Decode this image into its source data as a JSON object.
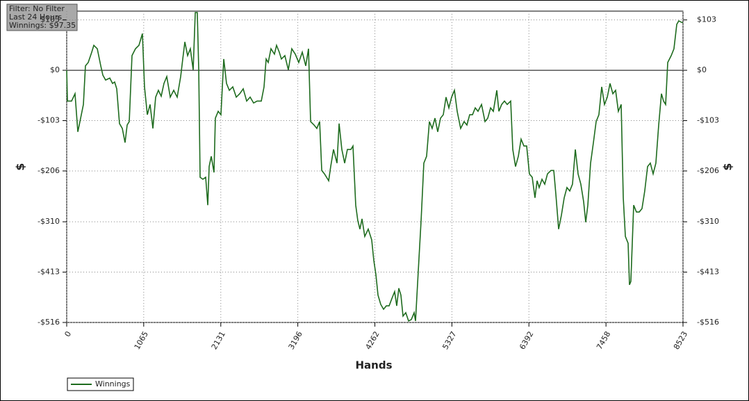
{
  "chart_data": {
    "type": "line",
    "info_box": [
      "Filter: No Filter",
      "Last 24 Hours",
      "Winnings: $97.35"
    ],
    "xlabel": "Hands",
    "ylabel": "$",
    "y2label": "$",
    "xlim": [
      0,
      8523
    ],
    "xticks": [
      0,
      1065,
      2131,
      3196,
      4262,
      5327,
      6392,
      7458,
      8523
    ],
    "ylim": [
      -516,
      121
    ],
    "yticks": [
      {
        "value": 103,
        "label": "$103"
      },
      {
        "value": 0,
        "label": "$0"
      },
      {
        "value": -103,
        "label": "-$103"
      },
      {
        "value": -206,
        "label": "-$206"
      },
      {
        "value": -310,
        "label": "-$310"
      },
      {
        "value": -413,
        "label": "-$413"
      },
      {
        "value": -516,
        "label": "-$516"
      }
    ],
    "y2lim": [
      -516,
      121
    ],
    "y2ticks": [
      {
        "value": 103,
        "label": "$103"
      },
      {
        "value": 0,
        "label": "$0"
      },
      {
        "value": -103,
        "label": "-$103"
      },
      {
        "value": -206,
        "label": "-$206"
      },
      {
        "value": -310,
        "label": "-$310"
      },
      {
        "value": -413,
        "label": "-$413"
      },
      {
        "value": -516,
        "label": "-$516"
      }
    ],
    "grid": true,
    "legend": "bottom-left",
    "x": [
      0,
      10,
      67,
      115,
      154,
      183,
      231,
      259,
      298,
      346,
      375,
      423,
      471,
      500,
      538,
      596,
      634,
      663,
      692,
      730,
      769,
      807,
      836,
      865,
      903,
      951,
      999,
      1047,
      1076,
      1115,
      1153,
      1192,
      1230,
      1268,
      1307,
      1345,
      1384,
      1432,
      1480,
      1528,
      1576,
      1605,
      1634,
      1672,
      1710,
      1749,
      1778,
      1806,
      1826,
      1845,
      1883,
      1922,
      1951,
      1970,
      1999,
      2037,
      2056,
      2095,
      2133,
      2172,
      2210,
      2249,
      2297,
      2345,
      2393,
      2441,
      2489,
      2537,
      2585,
      2633,
      2691,
      2729,
      2758,
      2787,
      2825,
      2873,
      2902,
      2940,
      2969,
      3017,
      3065,
      3113,
      3161,
      3209,
      3258,
      3306,
      3344,
      3373,
      3421,
      3459,
      3498,
      3527,
      3565,
      3623,
      3651,
      3690,
      3738,
      3767,
      3805,
      3844,
      3882,
      3930,
      3959,
      3997,
      4026,
      4055,
      4084,
      4122,
      4170,
      4218,
      4247,
      4276,
      4305,
      4343,
      4382,
      4420,
      4459,
      4497,
      4535,
      4564,
      4593,
      4622,
      4651,
      4689,
      4728,
      4766,
      4805,
      4824,
      4862,
      4901,
      4939,
      4977,
      5016,
      5054,
      5093,
      5131,
      5170,
      5208,
      5246,
      5285,
      5323,
      5362,
      5400,
      5448,
      5496,
      5535,
      5573,
      5612,
      5650,
      5688,
      5737,
      5785,
      5823,
      5862,
      5900,
      5948,
      5977,
      6015,
      6054,
      6092,
      6140,
      6169,
      6207,
      6246,
      6284,
      6323,
      6361,
      6399,
      6438,
      6476,
      6505,
      6534,
      6573,
      6611,
      6649,
      6697,
      6736,
      6765,
      6803,
      6841,
      6880,
      6918,
      6957,
      6995,
      7034,
      7072,
      7110,
      7149,
      7178,
      7207,
      7245,
      7284,
      7322,
      7360,
      7399,
      7437,
      7476,
      7514,
      7553,
      7591,
      7629,
      7668,
      7697,
      7726,
      7764,
      7783,
      7802,
      7841,
      7879,
      7918,
      7956,
      7994,
      8033,
      8071,
      8110,
      8148,
      8187,
      8225,
      8254,
      8283,
      8312,
      8360,
      8398,
      8437,
      8465,
      8504,
      8523
    ],
    "series": [
      {
        "name": "Winnings",
        "color": "#1e6b1e",
        "values": [
          0,
          -63,
          -63,
          -48,
          -126,
          -105,
          -70,
          9,
          16,
          37,
          51,
          44,
          9,
          -10,
          -20,
          -16,
          -27,
          -24,
          -38,
          -109,
          -119,
          -148,
          -112,
          -105,
          30,
          44,
          51,
          75,
          -34,
          -91,
          -70,
          -119,
          -55,
          -41,
          -53,
          -27,
          -13,
          -55,
          -41,
          -55,
          -13,
          23,
          58,
          30,
          44,
          1,
          118,
          118,
          1,
          -219,
          -223,
          -219,
          -276,
          -197,
          -176,
          -209,
          -98,
          -84,
          -91,
          23,
          -27,
          -41,
          -34,
          -55,
          -48,
          -38,
          -63,
          -55,
          -67,
          -63,
          -63,
          -34,
          23,
          16,
          44,
          33,
          51,
          37,
          23,
          30,
          1,
          44,
          33,
          16,
          37,
          9,
          44,
          -105,
          -112,
          -119,
          -105,
          -205,
          -212,
          -226,
          -197,
          -162,
          -190,
          -109,
          -162,
          -190,
          -162,
          -162,
          -155,
          -276,
          -308,
          -325,
          -304,
          -340,
          -325,
          -347,
          -389,
          -418,
          -460,
          -479,
          -489,
          -482,
          -482,
          -467,
          -453,
          -482,
          -446,
          -460,
          -503,
          -496,
          -513,
          -510,
          -496,
          -513,
          -411,
          -308,
          -190,
          -176,
          -105,
          -119,
          -98,
          -126,
          -98,
          -91,
          -55,
          -77,
          -55,
          -41,
          -84,
          -119,
          -105,
          -112,
          -91,
          -91,
          -77,
          -84,
          -70,
          -105,
          -98,
          -77,
          -84,
          -41,
          -84,
          -70,
          -63,
          -70,
          -63,
          -162,
          -197,
          -176,
          -141,
          -155,
          -155,
          -212,
          -219,
          -261,
          -226,
          -240,
          -223,
          -233,
          -212,
          -205,
          -205,
          -254,
          -325,
          -297,
          -261,
          -240,
          -247,
          -233,
          -162,
          -212,
          -233,
          -269,
          -311,
          -276,
          -190,
          -148,
          -105,
          -91,
          -34,
          -70,
          -55,
          -27,
          -48,
          -41,
          -84,
          -70,
          -261,
          -340,
          -354,
          -439,
          -432,
          -276,
          -290,
          -290,
          -283,
          -247,
          -197,
          -190,
          -212,
          -190,
          -112,
          -48,
          -63,
          -70,
          16,
          30,
          44,
          94,
          101,
          98,
          97.35
        ]
      }
    ]
  }
}
